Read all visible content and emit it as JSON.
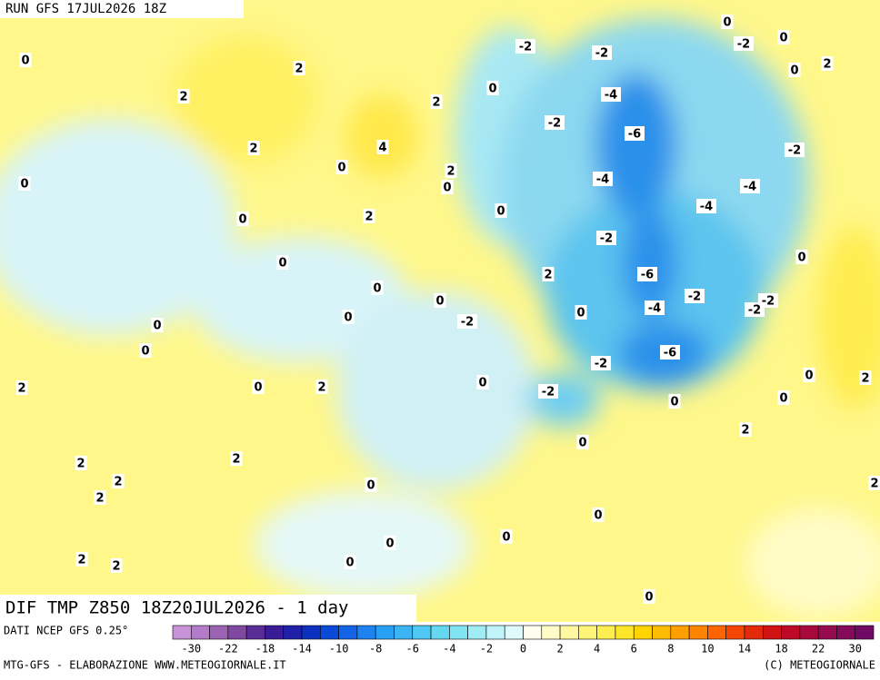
{
  "header": {
    "run": "RUN GFS 17JUL2026 18Z"
  },
  "map": {
    "title": "DIF TMP Z850 18Z20JUL2026 - 1 day",
    "labels": [
      0,
      2,
      -2,
      -2,
      0,
      -2,
      0,
      0,
      2,
      2,
      2,
      0,
      -4,
      -2,
      -6,
      2,
      4,
      -2,
      0,
      2,
      0,
      0,
      -4,
      -4,
      -4,
      0,
      2,
      0,
      -2,
      0,
      0,
      2,
      -6,
      0,
      0,
      -2,
      -2,
      -2,
      -4,
      0,
      0,
      -2,
      0,
      0,
      -6,
      -2,
      0,
      2,
      2,
      0,
      2,
      0,
      -2,
      0,
      0,
      2,
      0,
      2,
      2,
      2,
      2,
      0,
      2,
      0,
      0,
      0,
      2,
      2,
      0,
      0
    ]
  },
  "legend": {
    "source": "DATI NCEP GFS 0.25°",
    "ticks": [
      -30,
      -22,
      -18,
      -14,
      -10,
      -8,
      -6,
      -4,
      -2,
      0,
      2,
      4,
      6,
      8,
      10,
      14,
      18,
      22,
      30
    ],
    "colors": [
      "#c893d8",
      "#b47cc8",
      "#9c62b4",
      "#8049a0",
      "#5a2c96",
      "#3a1c96",
      "#2020a8",
      "#0c30c0",
      "#0a4ad8",
      "#1464e8",
      "#1e82f0",
      "#28a0f4",
      "#3cb4f4",
      "#50c8f4",
      "#64d8f0",
      "#82e4f0",
      "#a0ecf4",
      "#c0f4f8",
      "#e0fafc",
      "#fffff0",
      "#fffcc8",
      "#fff8a0",
      "#fff478",
      "#ffee50",
      "#ffe628",
      "#ffd400",
      "#ffbc00",
      "#ffa000",
      "#ff8400",
      "#ff6400",
      "#f44600",
      "#e42a0a",
      "#d01414",
      "#bc0a28",
      "#a8083c",
      "#960a50",
      "#840a5c",
      "#700a64"
    ]
  },
  "footer": {
    "left": "MTG-GFS - ELABORAZIONE WWW.METEOGIORNALE.IT",
    "right": "(C) METEOGIORNALE"
  }
}
